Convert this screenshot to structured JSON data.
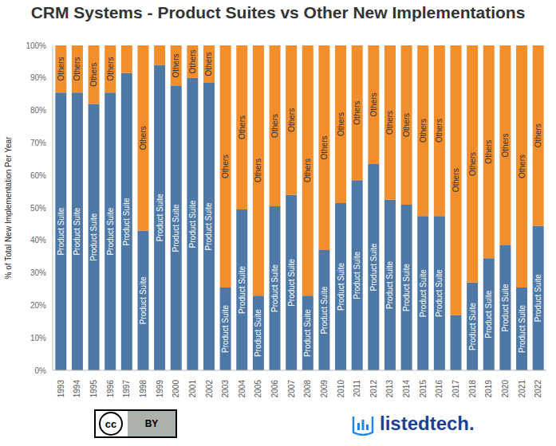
{
  "chart_data": {
    "type": "bar",
    "title": "CRM Systems - Product Suites vs Other New Implementations",
    "y_label": "% of Total New Implementation Per Year",
    "categories": [
      "1993",
      "1994",
      "1995",
      "1996",
      "1997",
      "1998",
      "1999",
      "2000",
      "2001",
      "2002",
      "2003",
      "2004",
      "2005",
      "2006",
      "2007",
      "2008",
      "2009",
      "2010",
      "2011",
      "2012",
      "2013",
      "2014",
      "2015",
      "2016",
      "2017",
      "2018",
      "2019",
      "2020",
      "2021",
      "2022"
    ],
    "series": [
      {
        "name": "Product Suite",
        "color": "#4e79a7",
        "values": [
          85.5,
          85.5,
          82,
          85.5,
          91.5,
          43,
          94,
          87.5,
          90,
          88.5,
          25.5,
          49.5,
          23,
          50.5,
          54,
          23,
          37,
          51.5,
          58.5,
          63.5,
          52.5,
          51,
          47.5,
          47.5,
          17,
          27,
          34.5,
          38.5,
          25.5,
          44.5
        ]
      },
      {
        "name": "Others",
        "color": "#f28e2b",
        "values": [
          14.5,
          14.5,
          18,
          14.5,
          8.5,
          57,
          6,
          12.5,
          10,
          11.5,
          74.5,
          50.5,
          77,
          49.5,
          46,
          77,
          63,
          48.5,
          41.5,
          36.5,
          47.5,
          49,
          52.5,
          52.5,
          83,
          73,
          65.5,
          61.5,
          74.5,
          55.5
        ]
      }
    ],
    "stacked": true,
    "ylim": [
      0,
      100
    ],
    "yticks": [
      {
        "value": 0,
        "label": "0%"
      },
      {
        "value": 10,
        "label": "10%"
      },
      {
        "value": 20,
        "label": "20%"
      },
      {
        "value": 30,
        "label": "30%"
      },
      {
        "value": 40,
        "label": "40%"
      },
      {
        "value": 50,
        "label": "50%"
      },
      {
        "value": 60,
        "label": "60%"
      },
      {
        "value": 70,
        "label": "70%"
      },
      {
        "value": 80,
        "label": "80%"
      },
      {
        "value": 90,
        "label": "90%"
      },
      {
        "value": 100,
        "label": "100%"
      }
    ],
    "grid": false,
    "annotations": [
      "cc",
      "BY",
      "listedtech."
    ]
  }
}
